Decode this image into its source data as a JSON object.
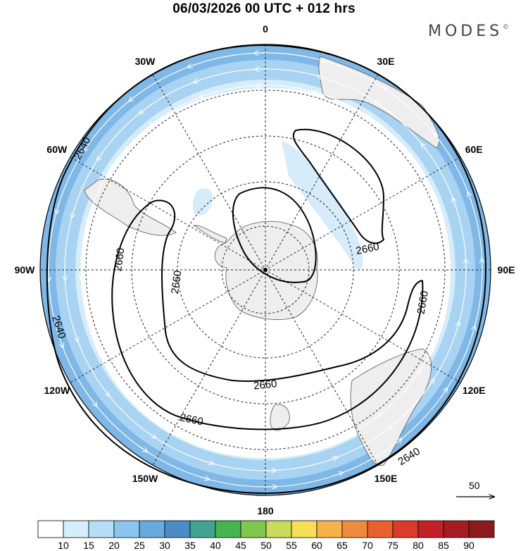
{
  "title": "06/03/2026  00 UTC  + 012 hrs",
  "logo": "MODES",
  "logo_mark": "©",
  "longitude_labels": [
    {
      "text": "0",
      "lon": 0
    },
    {
      "text": "30E",
      "lon": 30
    },
    {
      "text": "60E",
      "lon": 60
    },
    {
      "text": "90E",
      "lon": 90
    },
    {
      "text": "120E",
      "lon": 120
    },
    {
      "text": "150E",
      "lon": 150
    },
    {
      "text": "180",
      "lon": 180
    },
    {
      "text": "150W",
      "lon": -150
    },
    {
      "text": "120W",
      "lon": -120
    },
    {
      "text": "90W",
      "lon": -90
    },
    {
      "text": "60W",
      "lon": -60
    },
    {
      "text": "30W",
      "lon": -30
    }
  ],
  "contour_labels": [
    "2640",
    "2640",
    "2640",
    "2660",
    "2660",
    "2660",
    "2660",
    "2660",
    "2660"
  ],
  "reference_vector": "50",
  "colorbar": {
    "labels": [
      "10",
      "15",
      "20",
      "25",
      "30",
      "35",
      "40",
      "45",
      "50",
      "55",
      "60",
      "65",
      "70",
      "75",
      "80",
      "85",
      "90"
    ],
    "colors": [
      "#ffffff",
      "#d4effb",
      "#b5dff7",
      "#8cc6ee",
      "#69a9de",
      "#4a8cc4",
      "#43a391",
      "#46b550",
      "#7fc64c",
      "#c8dc5a",
      "#f6df57",
      "#f4b44a",
      "#ee8b3c",
      "#e8612f",
      "#dc3a2b",
      "#c22227",
      "#a51b22",
      "#8c1a1a"
    ]
  },
  "colors": {
    "land": "#eeeeee",
    "coast": "#555555",
    "grid": "#222222",
    "contour": "#000000",
    "band_outer": "#7fb8e6",
    "band_mid": "#a9d3f2",
    "band_inner": "#d6ecfa"
  }
}
